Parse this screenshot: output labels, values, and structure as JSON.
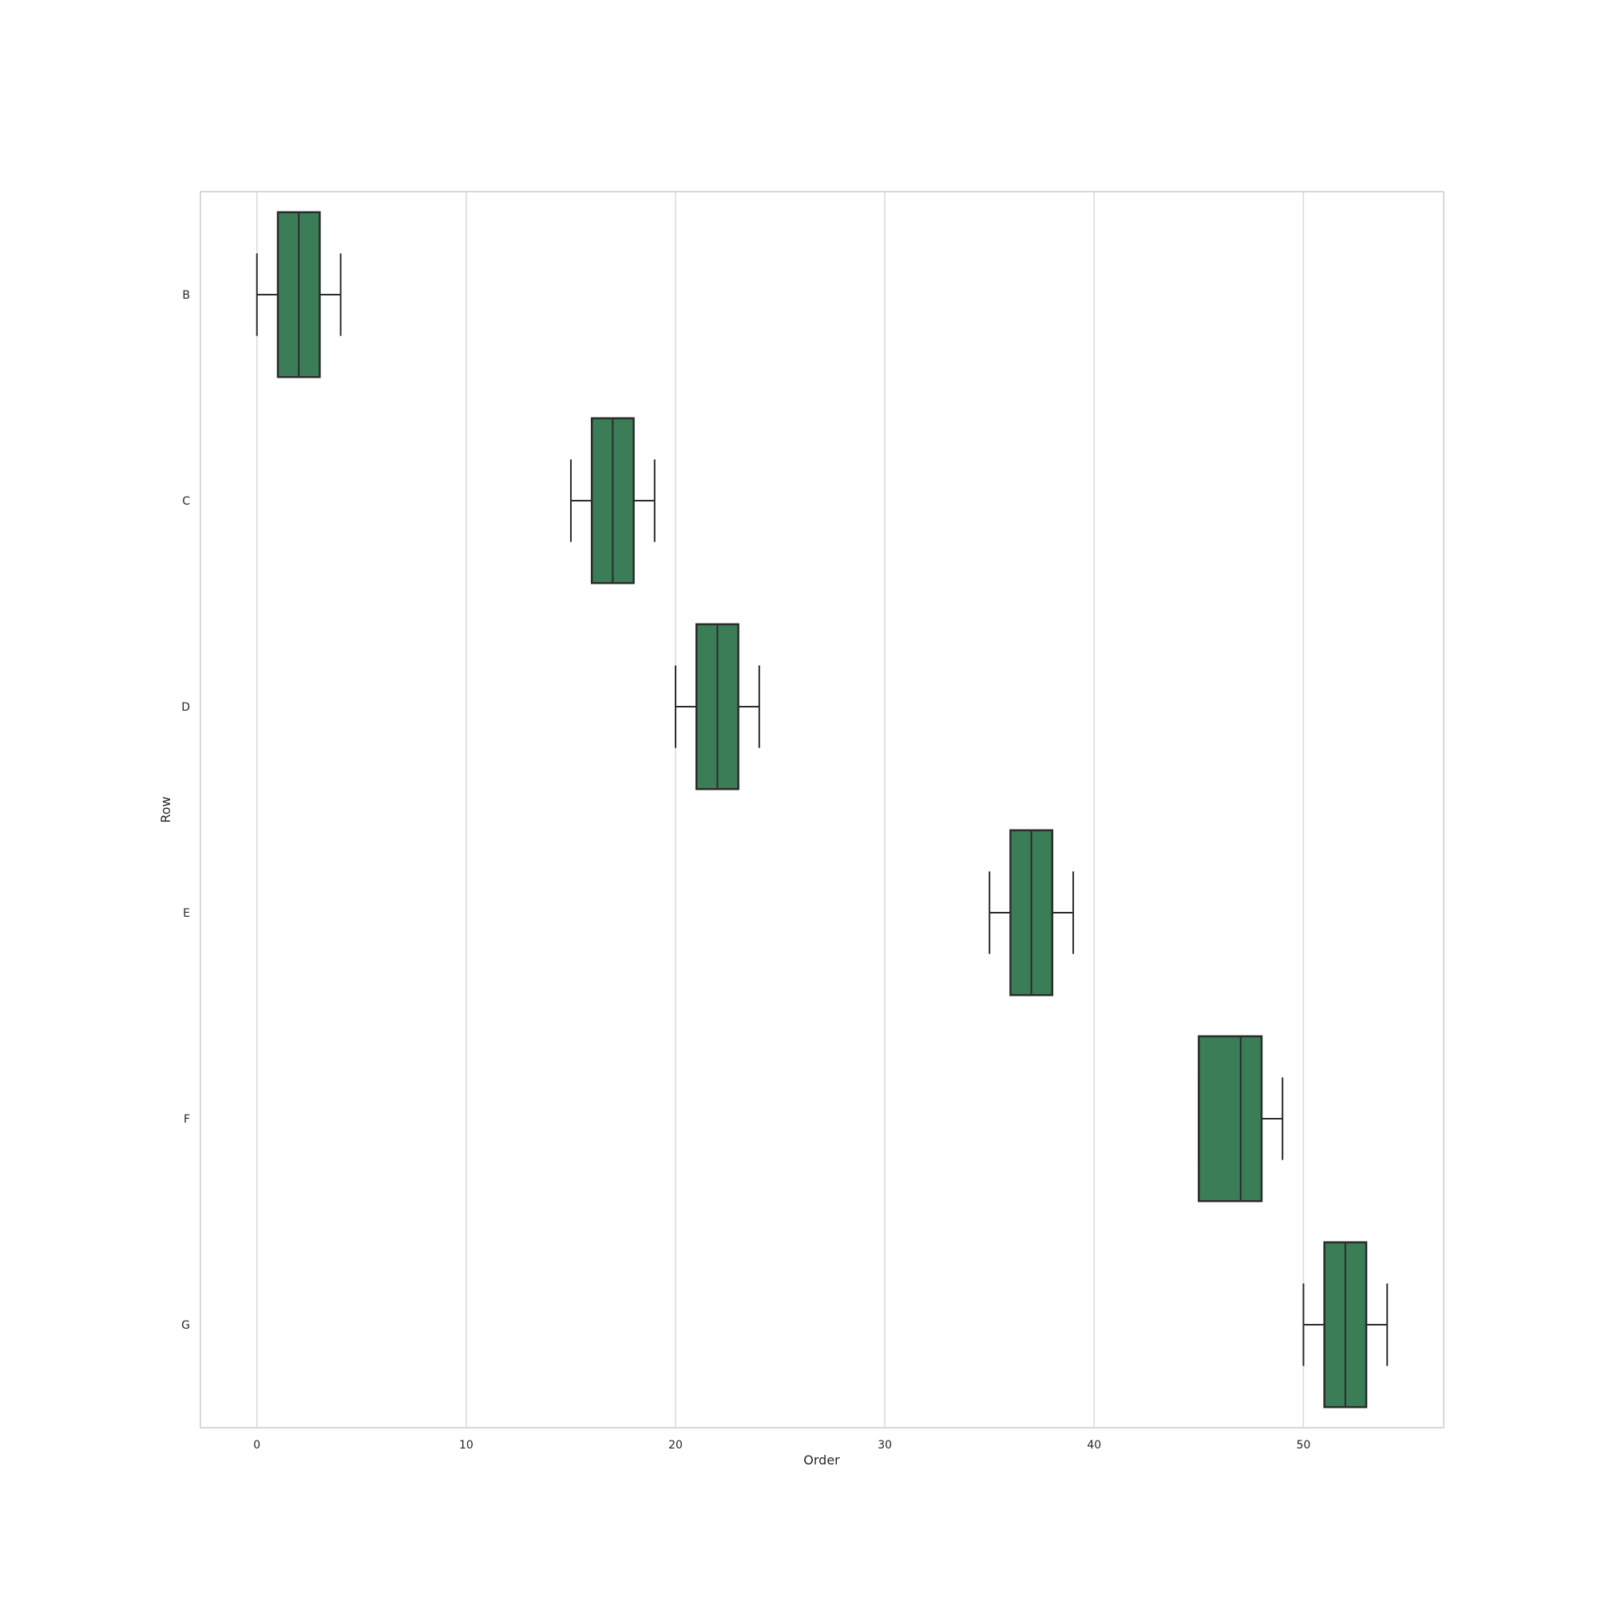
{
  "chart_data": {
    "type": "box",
    "orientation": "horizontal",
    "xlabel": "Order",
    "ylabel": "Row",
    "xlim": [
      -2.7,
      56.7
    ],
    "xticks": [
      0,
      10,
      20,
      30,
      40,
      50
    ],
    "categories": [
      "B",
      "C",
      "D",
      "E",
      "F",
      "G"
    ],
    "grid": "vertical",
    "legend": "none",
    "colors": {
      "box_fill": "#3a7d57",
      "box_edge": "#2b2b2b",
      "grid": "#d9d9d9",
      "spine": "#cccccc",
      "text": "#262626"
    },
    "boxes": [
      {
        "category": "B",
        "whisker_low": 0,
        "q1": 1,
        "median": 2,
        "q3": 3,
        "whisker_high": 4
      },
      {
        "category": "C",
        "whisker_low": 15,
        "q1": 16,
        "median": 17,
        "q3": 18,
        "whisker_high": 19
      },
      {
        "category": "D",
        "whisker_low": 20,
        "q1": 21,
        "median": 22,
        "q3": 23,
        "whisker_high": 24
      },
      {
        "category": "E",
        "whisker_low": 35,
        "q1": 36,
        "median": 37,
        "q3": 38,
        "whisker_high": 39
      },
      {
        "category": "F",
        "whisker_low": 45,
        "q1": 45,
        "median": 47,
        "q3": 48,
        "whisker_high": 49
      },
      {
        "category": "G",
        "whisker_low": 50,
        "q1": 51,
        "median": 52,
        "q3": 53,
        "whisker_high": 54
      }
    ]
  }
}
